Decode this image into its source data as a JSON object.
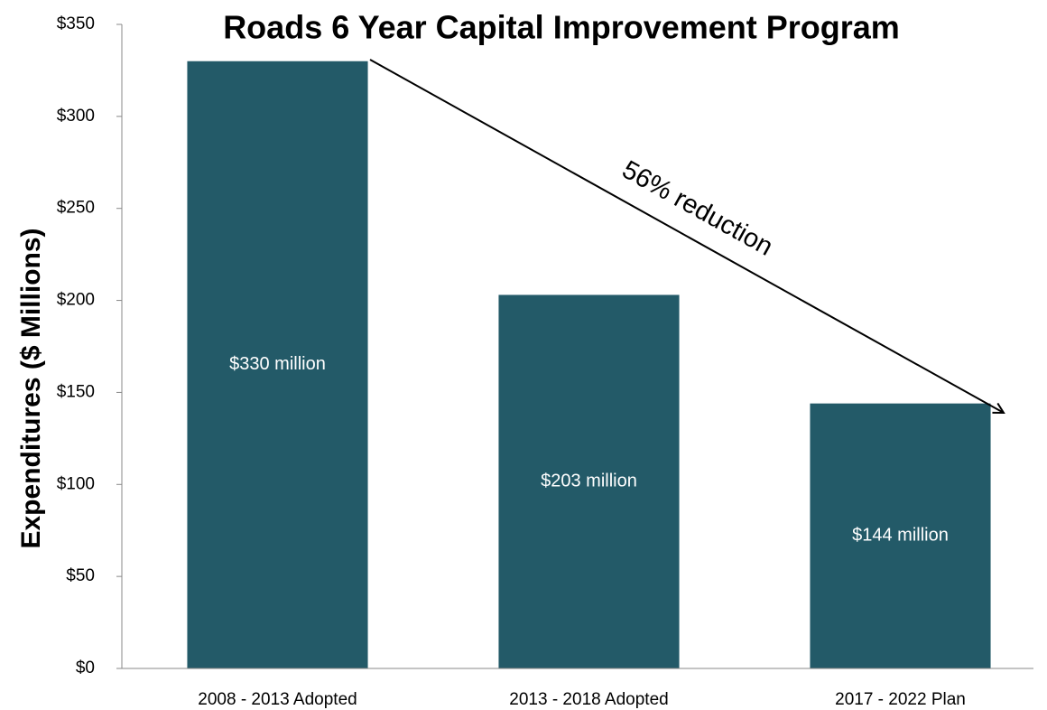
{
  "chart_data": {
    "type": "bar",
    "title": "Roads 6 Year Capital Improvement Program",
    "y_label": "Expenditures  ($ Millions)",
    "annotation": "56% reduction",
    "categories": [
      "2008 - 2013 Adopted",
      "2013 - 2018 Adopted",
      "2017 - 2022 Plan"
    ],
    "values": [
      330,
      203,
      144
    ],
    "value_labels": [
      "$330 million",
      "$203 million",
      "$144 million"
    ],
    "color": "#235a68",
    "ylim": [
      0,
      350
    ],
    "yticks": [
      {
        "value": 0,
        "label": "$0"
      },
      {
        "value": 50,
        "label": "$50"
      },
      {
        "value": 100,
        "label": "$100"
      },
      {
        "value": 150,
        "label": "$150"
      },
      {
        "value": 200,
        "label": "$200"
      },
      {
        "value": 250,
        "label": "$250"
      },
      {
        "value": 300,
        "label": "$300"
      },
      {
        "value": 350,
        "label": "$350"
      }
    ],
    "grid": false
  }
}
